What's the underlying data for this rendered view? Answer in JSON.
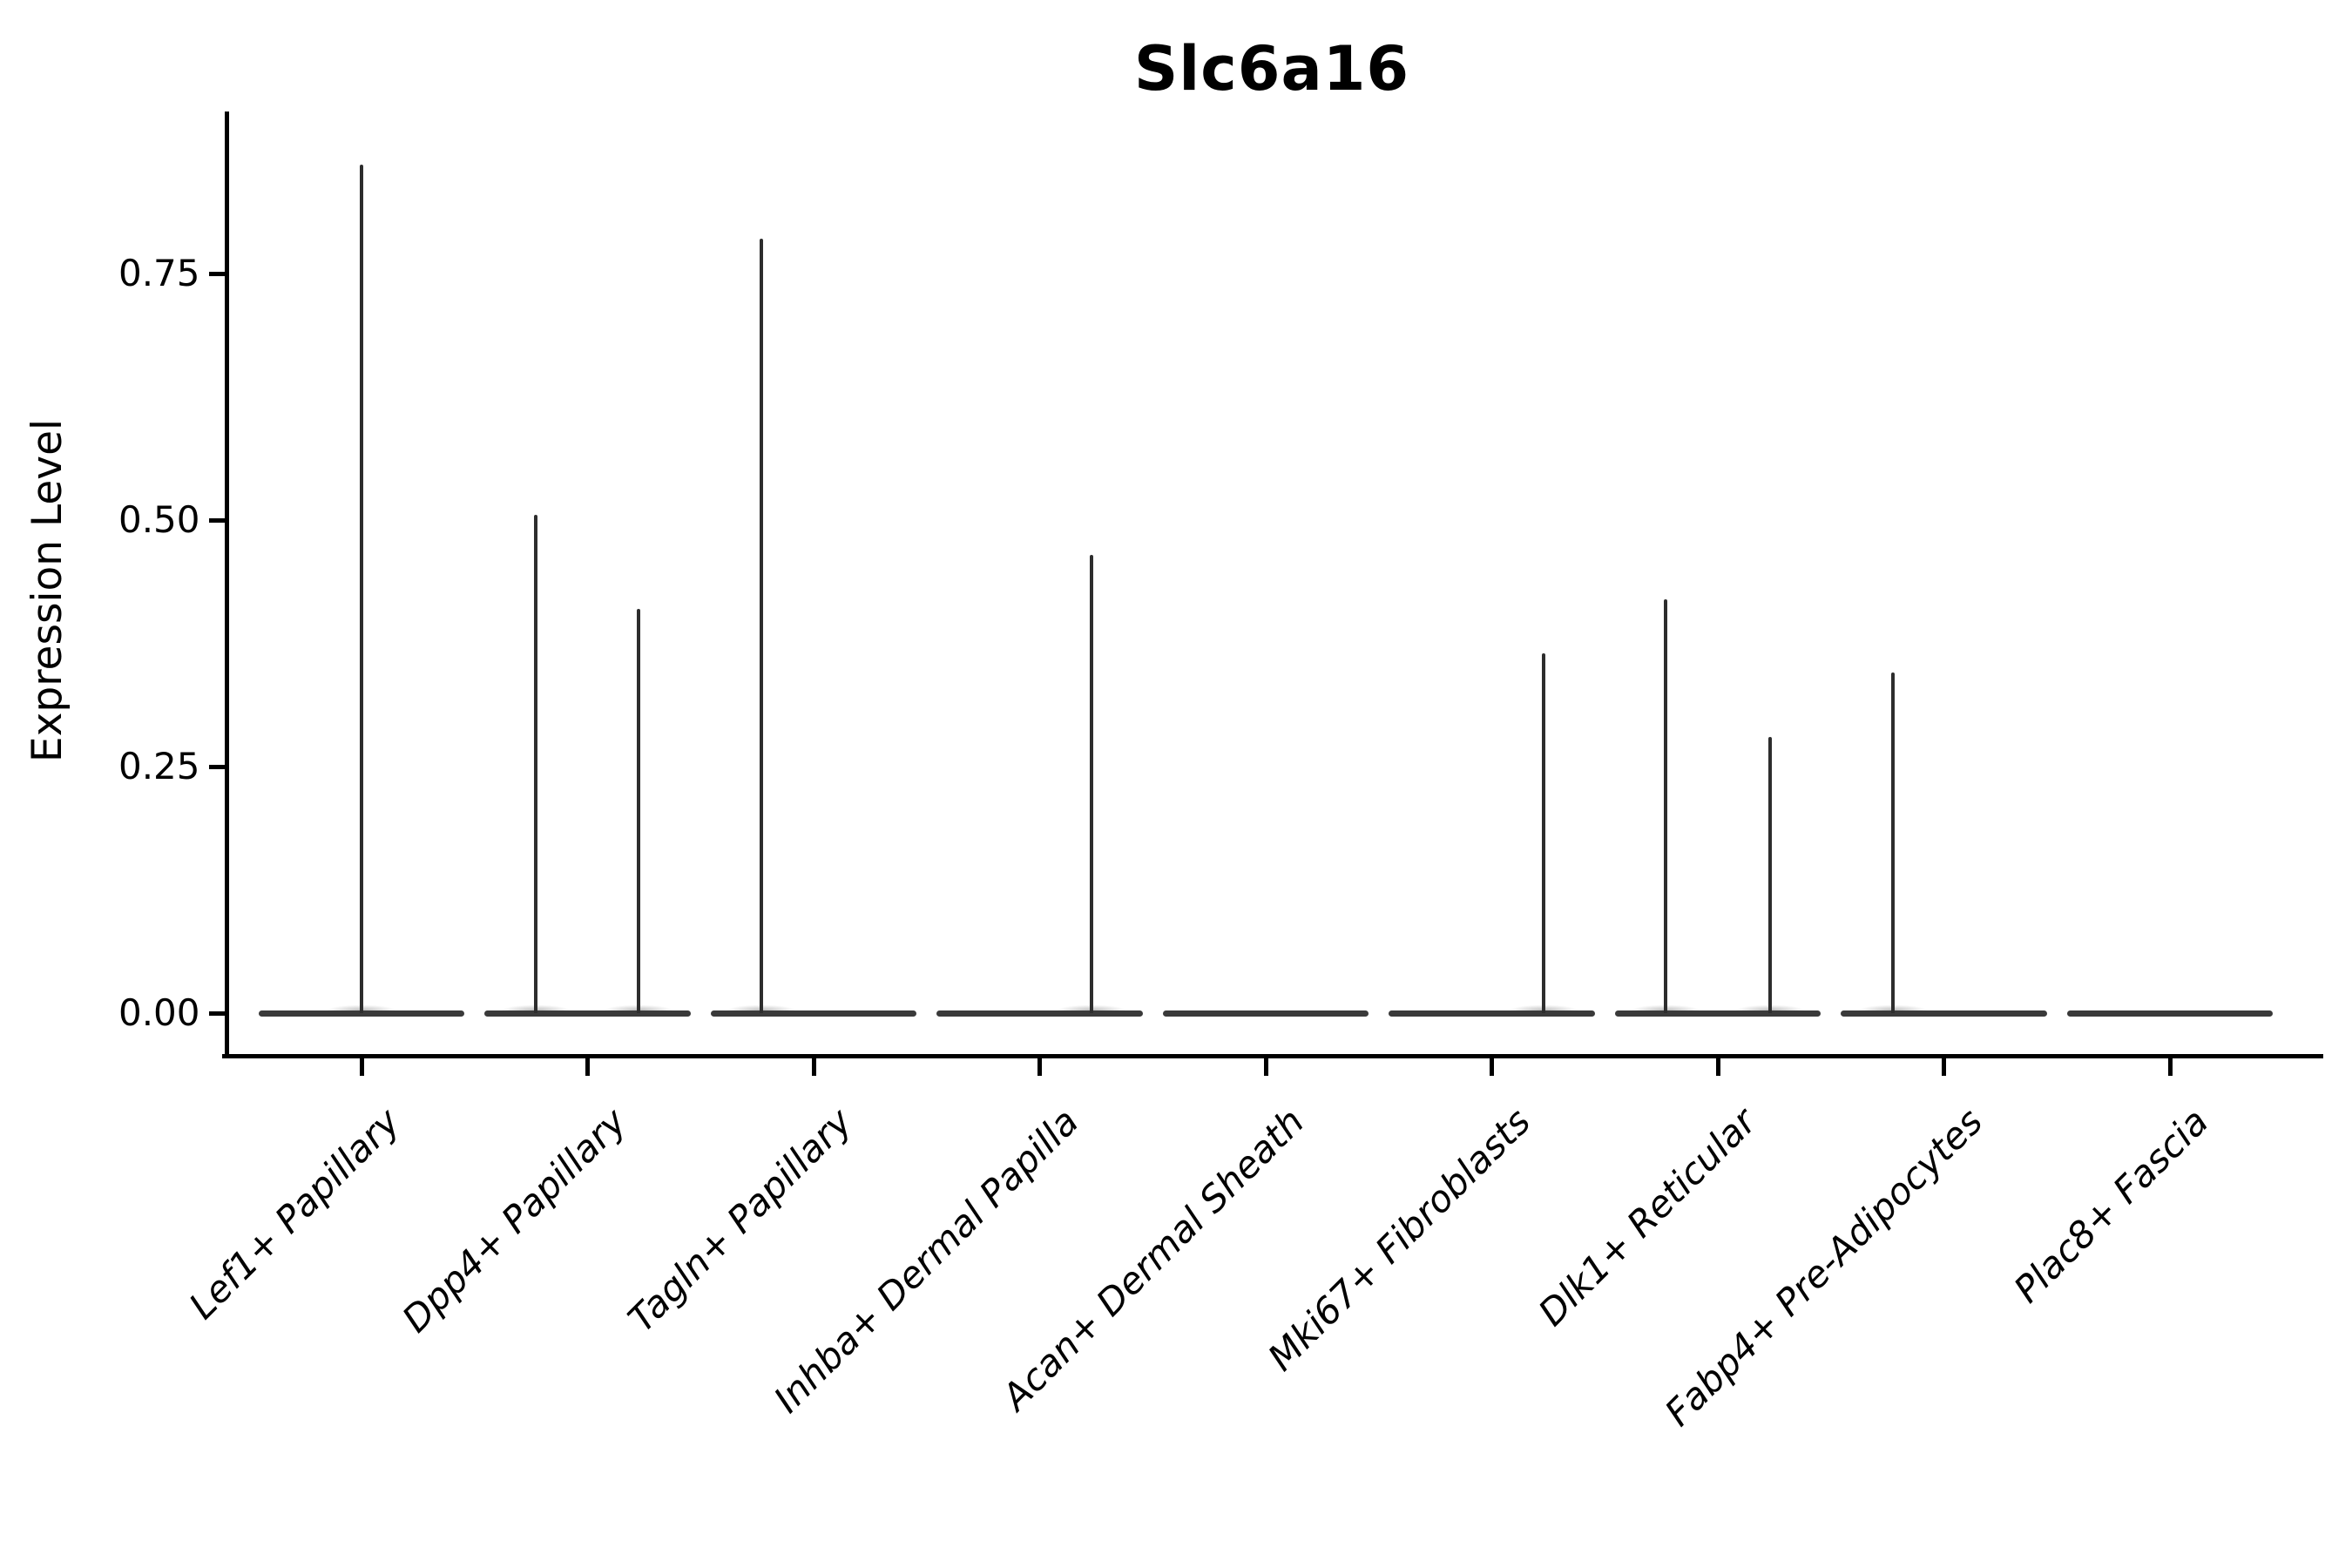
{
  "title": "Slc6a16",
  "axes": {
    "ylabel": "Expression Level",
    "ytick_labels": [
      "0.00",
      "0.25",
      "0.50",
      "0.75"
    ]
  },
  "chart_data": {
    "type": "violin",
    "title": "Slc6a16",
    "xlabel": "",
    "ylabel": "Expression Level",
    "ylim": [
      -0.042,
      0.912
    ],
    "yticks": [
      0.0,
      0.25,
      0.5,
      0.75
    ],
    "grid": false,
    "legend": "none",
    "description": "Violin plot of Slc6a16 expression per fibroblast cluster; expression is near zero in all clusters, violins collapse to a flat baseline with thin density needles rising at the listed maxima. Needles sit at a horizontal offset within each category slot (fraction of category width).",
    "categories": [
      "Lef1+ Papillary",
      "Dpp4+ Papillary",
      "Tagln+ Papillary",
      "Inhba+ Dermal Papilla",
      "Acan+ Dermal Sheath",
      "Mki67+ Fibroblasts",
      "Dlk1+ Reticular",
      "Fabp4+ Pre-Adipocytes",
      "Plac8+ Fascia"
    ],
    "baseline_value": 0.0,
    "baseline_halfwidth_frac": 0.455,
    "series": [
      {
        "category": "Lef1+ Papillary",
        "peaks": [
          {
            "offset_frac": 0.0,
            "max": 0.86
          }
        ]
      },
      {
        "category": "Dpp4+ Papillary",
        "peaks": [
          {
            "offset_frac": -0.23,
            "max": 0.505
          },
          {
            "offset_frac": 0.225,
            "max": 0.41
          }
        ]
      },
      {
        "category": "Tagln+ Papillary",
        "peaks": [
          {
            "offset_frac": -0.23,
            "max": 0.785
          }
        ]
      },
      {
        "category": "Inhba+ Dermal Papilla",
        "peaks": [
          {
            "offset_frac": 0.23,
            "max": 0.465
          }
        ]
      },
      {
        "category": "Acan+ Dermal Sheath",
        "peaks": []
      },
      {
        "category": "Mki67+ Fibroblasts",
        "peaks": [
          {
            "offset_frac": 0.23,
            "max": 0.365
          }
        ]
      },
      {
        "category": "Dlk1+ Reticular",
        "peaks": [
          {
            "offset_frac": -0.23,
            "max": 0.42
          },
          {
            "offset_frac": 0.23,
            "max": 0.28
          }
        ]
      },
      {
        "category": "Fabp4+ Pre-Adipocytes",
        "peaks": [
          {
            "offset_frac": -0.225,
            "max": 0.345
          }
        ]
      },
      {
        "category": "Plac8+ Fascia",
        "peaks": []
      }
    ],
    "colors": {
      "axis": "#000000",
      "text": "#000000",
      "violin_line": "#2d2d2d",
      "violin_baseline": "#3a3a3a",
      "background": "#ffffff"
    }
  }
}
